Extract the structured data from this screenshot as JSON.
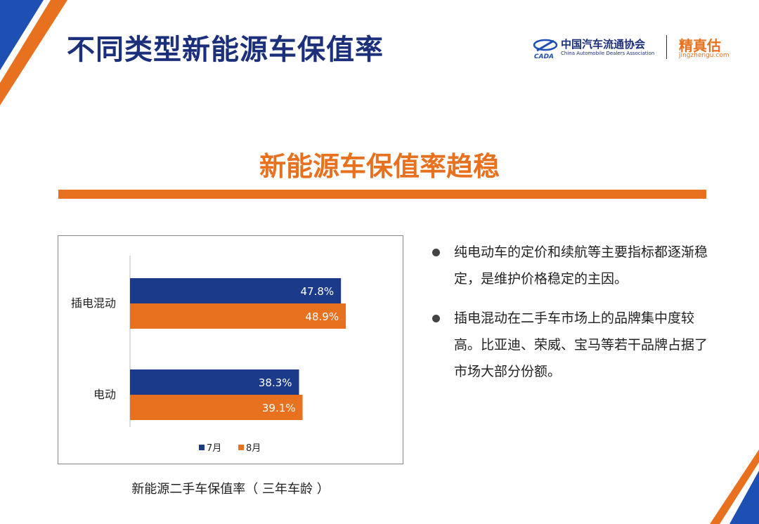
{
  "header": {
    "title": "不同类型新能源车保值率",
    "logo_cada_cn": "中国汽车流通协会",
    "logo_cada_en": "China Automobile Dealers Association",
    "logo_cada_mark": "CADA",
    "logo_jzg_cn": "精真估",
    "logo_jzg_url": "jingzhengu.com"
  },
  "subtitle": "新能源车保值率趋稳",
  "chart_caption": "新能源二手车保值率（  三年车龄  ）",
  "bullets": [
    "纯电动车的定价和续航等主要指标都逐渐稳定，是维护价格稳定的主因。",
    "插电混动在二手车市场上的品牌集中度较高。比亚迪、荣威、宝马等若干品牌占据了市场大部分份额。"
  ],
  "colors": {
    "navy": "#1b3a8a",
    "orange": "#e8711f",
    "title_blue": "#1b2f7a"
  },
  "chart_data": {
    "type": "bar",
    "orientation": "horizontal",
    "categories": [
      "插电混动",
      "电动"
    ],
    "series": [
      {
        "name": "7月",
        "values": [
          47.8,
          38.3
        ],
        "labels": [
          "47.8%",
          "38.3%"
        ],
        "color": "#1b3a8a"
      },
      {
        "name": "8月",
        "values": [
          48.9,
          39.1
        ],
        "labels": [
          "48.9%",
          "39.1%"
        ],
        "color": "#e8711f"
      }
    ],
    "title": "",
    "xlabel": "",
    "ylabel": "",
    "xlim": [
      0,
      60
    ],
    "grid": false,
    "legend": "bottom"
  }
}
